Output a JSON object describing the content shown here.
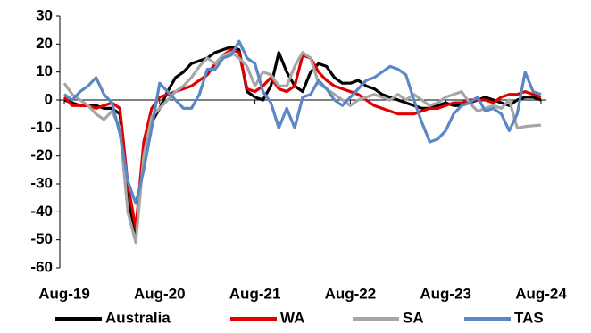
{
  "chart_data": {
    "type": "line",
    "categories": [
      "Aug-19",
      null,
      null,
      null,
      null,
      null,
      null,
      null,
      null,
      null,
      null,
      null,
      "Aug-20",
      null,
      null,
      null,
      null,
      null,
      null,
      null,
      null,
      null,
      null,
      null,
      "Aug-21",
      null,
      null,
      null,
      null,
      null,
      null,
      null,
      null,
      null,
      null,
      null,
      "Aug-22",
      null,
      null,
      null,
      null,
      null,
      null,
      null,
      null,
      null,
      null,
      null,
      "Aug-23",
      null,
      null,
      null,
      null,
      null,
      null,
      null,
      null,
      null,
      null,
      null,
      "Aug-24"
    ],
    "series": [
      {
        "name": "Australia",
        "color": "#000000",
        "values": [
          0,
          -1,
          -2,
          -2,
          -2,
          -3,
          -3,
          -5,
          -35,
          -48,
          -20,
          -8,
          -3,
          3,
          8,
          10,
          13,
          14,
          15,
          17,
          18,
          19,
          18,
          3,
          1,
          0,
          5,
          17,
          10,
          5,
          3,
          10,
          13,
          12,
          8,
          6,
          6,
          7,
          5,
          4,
          2,
          1,
          0,
          -1,
          -2,
          -3,
          -3,
          -2,
          -1,
          -2,
          -2,
          -1,
          0,
          1,
          0,
          -1,
          -2,
          0,
          1,
          1,
          0
        ]
      },
      {
        "name": "WA",
        "color": "#e00000",
        "values": [
          1,
          -2,
          -2,
          -2,
          -3,
          -2,
          -1,
          -3,
          -30,
          -46,
          -15,
          -3,
          1,
          2,
          3,
          4,
          5,
          7,
          9,
          13,
          16,
          18,
          17,
          4,
          3,
          5,
          8,
          4,
          3,
          5,
          16,
          15,
          10,
          7,
          5,
          4,
          3,
          2,
          0,
          -2,
          -3,
          -4,
          -5,
          -5,
          -5,
          -4,
          -3,
          -3,
          -2,
          -1,
          -1,
          0,
          0,
          0,
          -1,
          1,
          2,
          2,
          3,
          2,
          1
        ]
      },
      {
        "name": "SA",
        "color": "#a6a6a6",
        "values": [
          6,
          2,
          0,
          -2,
          -5,
          -7,
          -4,
          -10,
          -40,
          -51,
          -20,
          -6,
          -3,
          0,
          3,
          5,
          8,
          12,
          15,
          13,
          16,
          17,
          15,
          12,
          5,
          10,
          9,
          5,
          5,
          12,
          17,
          15,
          6,
          4,
          2,
          0,
          -2,
          0,
          1,
          2,
          1,
          0,
          2,
          0,
          2,
          0,
          -2,
          -1,
          1,
          2,
          3,
          -1,
          -4,
          -3,
          -2,
          -3,
          0,
          -10,
          -9.5,
          -9.2,
          -9
        ]
      },
      {
        "name": "TAS",
        "color": "#5b87c5",
        "values": [
          2,
          0,
          3,
          5,
          8,
          2,
          -1,
          -12,
          -29,
          -37,
          -25,
          -10,
          6,
          3,
          0,
          -3,
          -3,
          2,
          11,
          11,
          15,
          16,
          21,
          15,
          13,
          3,
          -1,
          -10,
          -3,
          -10,
          1,
          2,
          7,
          4,
          0,
          -2,
          1,
          4,
          7,
          8,
          10,
          12,
          11,
          9,
          0,
          -8,
          -15,
          -14,
          -11,
          -5,
          -2,
          -1,
          1,
          -4,
          -3,
          -5,
          -11,
          -5,
          10,
          3,
          2
        ]
      }
    ],
    "ylim": [
      -60,
      30
    ],
    "yticks": [
      -60,
      -50,
      -40,
      -30,
      -20,
      -10,
      0,
      10,
      20,
      30
    ],
    "grid": false,
    "legend": "bottom"
  }
}
